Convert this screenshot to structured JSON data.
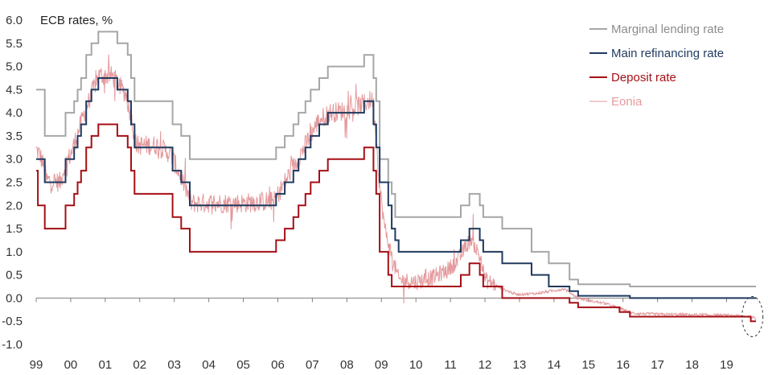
{
  "chart_data": {
    "type": "line",
    "ylabel": "ECB rates, %",
    "ylim": [
      -1.0,
      6.0
    ],
    "yticks": [
      "6.0",
      "5.5",
      "5.0",
      "4.5",
      "4.0",
      "3.5",
      "3.0",
      "2.5",
      "2.0",
      "1.5",
      "1.0",
      "0.5",
      "0.0",
      "-0.5",
      "-1.0"
    ],
    "xlim": [
      1999.0,
      2019.85
    ],
    "xticks": [
      {
        "label": "99",
        "x": 1999.0
      },
      {
        "label": "00",
        "x": 2000.0
      },
      {
        "label": "01",
        "x": 2001.0
      },
      {
        "label": "02",
        "x": 2002.0
      },
      {
        "label": "03",
        "x": 2003.0
      },
      {
        "label": "04",
        "x": 2004.0
      },
      {
        "label": "05",
        "x": 2005.0
      },
      {
        "label": "06",
        "x": 2006.0
      },
      {
        "label": "07",
        "x": 2007.0
      },
      {
        "label": "08",
        "x": 2008.0
      },
      {
        "label": "09",
        "x": 2009.0
      },
      {
        "label": "10",
        "x": 2010.0
      },
      {
        "label": "11",
        "x": 2011.0
      },
      {
        "label": "12",
        "x": 2012.0
      },
      {
        "label": "13",
        "x": 2013.0
      },
      {
        "label": "14",
        "x": 2014.0
      },
      {
        "label": "15",
        "x": 2015.0
      },
      {
        "label": "16",
        "x": 2016.0
      },
      {
        "label": "17",
        "x": 2017.0
      },
      {
        "label": "18",
        "x": 2018.0
      },
      {
        "label": "19",
        "x": 2019.0
      }
    ],
    "legend_position": "top-right",
    "series": [
      {
        "name": "Marginal lending rate",
        "color": "#a6a6a6",
        "step": true,
        "points": [
          [
            1999.0,
            4.5
          ],
          [
            1999.25,
            3.5
          ],
          [
            1999.85,
            4.0
          ],
          [
            2000.1,
            4.25
          ],
          [
            2000.2,
            4.5
          ],
          [
            2000.3,
            4.75
          ],
          [
            2000.45,
            5.25
          ],
          [
            2000.6,
            5.5
          ],
          [
            2000.8,
            5.75
          ],
          [
            2001.35,
            5.5
          ],
          [
            2001.65,
            5.25
          ],
          [
            2001.75,
            4.75
          ],
          [
            2001.85,
            4.25
          ],
          [
            2002.95,
            3.75
          ],
          [
            2003.2,
            3.5
          ],
          [
            2003.45,
            3.0
          ],
          [
            2005.95,
            3.25
          ],
          [
            2006.2,
            3.5
          ],
          [
            2006.45,
            3.75
          ],
          [
            2006.6,
            4.0
          ],
          [
            2006.8,
            4.25
          ],
          [
            2006.95,
            4.5
          ],
          [
            2007.2,
            4.75
          ],
          [
            2007.45,
            5.0
          ],
          [
            2008.5,
            5.25
          ],
          [
            2008.77,
            4.75
          ],
          [
            2008.85,
            4.25
          ],
          [
            2008.95,
            3.0
          ],
          [
            2009.05,
            3.0
          ],
          [
            2009.2,
            2.5
          ],
          [
            2009.3,
            2.25
          ],
          [
            2009.4,
            1.75
          ],
          [
            2011.3,
            2.0
          ],
          [
            2011.55,
            2.25
          ],
          [
            2011.85,
            2.0
          ],
          [
            2011.95,
            1.75
          ],
          [
            2012.5,
            1.5
          ],
          [
            2013.35,
            1.0
          ],
          [
            2013.85,
            0.75
          ],
          [
            2014.45,
            0.4
          ],
          [
            2014.7,
            0.3
          ],
          [
            2016.2,
            0.25
          ],
          [
            2019.85,
            0.25
          ]
        ]
      },
      {
        "name": "Main refinancing rate",
        "color": "#1f3a5f",
        "step": true,
        "points": [
          [
            1999.0,
            3.0
          ],
          [
            1999.25,
            2.5
          ],
          [
            1999.85,
            3.0
          ],
          [
            2000.1,
            3.25
          ],
          [
            2000.2,
            3.5
          ],
          [
            2000.3,
            3.75
          ],
          [
            2000.45,
            4.25
          ],
          [
            2000.6,
            4.5
          ],
          [
            2000.8,
            4.75
          ],
          [
            2001.35,
            4.5
          ],
          [
            2001.65,
            4.25
          ],
          [
            2001.75,
            3.75
          ],
          [
            2001.85,
            3.25
          ],
          [
            2002.95,
            2.75
          ],
          [
            2003.2,
            2.5
          ],
          [
            2003.45,
            2.0
          ],
          [
            2005.95,
            2.25
          ],
          [
            2006.2,
            2.5
          ],
          [
            2006.45,
            2.75
          ],
          [
            2006.6,
            3.0
          ],
          [
            2006.8,
            3.25
          ],
          [
            2006.95,
            3.5
          ],
          [
            2007.2,
            3.75
          ],
          [
            2007.45,
            4.0
          ],
          [
            2008.5,
            4.25
          ],
          [
            2008.77,
            3.75
          ],
          [
            2008.85,
            3.25
          ],
          [
            2008.95,
            2.5
          ],
          [
            2009.05,
            2.5
          ],
          [
            2009.2,
            2.0
          ],
          [
            2009.3,
            1.5
          ],
          [
            2009.4,
            1.25
          ],
          [
            2009.5,
            1.0
          ],
          [
            2011.3,
            1.25
          ],
          [
            2011.55,
            1.5
          ],
          [
            2011.85,
            1.25
          ],
          [
            2011.95,
            1.0
          ],
          [
            2012.5,
            0.75
          ],
          [
            2013.35,
            0.5
          ],
          [
            2013.85,
            0.25
          ],
          [
            2014.45,
            0.15
          ],
          [
            2014.7,
            0.05
          ],
          [
            2016.2,
            0.0
          ],
          [
            2019.85,
            0.0
          ]
        ]
      },
      {
        "name": "Deposit rate",
        "color": "#a50f15",
        "step": true,
        "points": [
          [
            1999.0,
            2.75
          ],
          [
            1999.05,
            2.0
          ],
          [
            1999.25,
            1.5
          ],
          [
            1999.85,
            2.0
          ],
          [
            2000.1,
            2.25
          ],
          [
            2000.2,
            2.5
          ],
          [
            2000.3,
            2.75
          ],
          [
            2000.45,
            3.25
          ],
          [
            2000.6,
            3.5
          ],
          [
            2000.8,
            3.75
          ],
          [
            2001.35,
            3.5
          ],
          [
            2001.65,
            3.25
          ],
          [
            2001.75,
            2.75
          ],
          [
            2001.85,
            2.25
          ],
          [
            2002.95,
            1.75
          ],
          [
            2003.2,
            1.5
          ],
          [
            2003.45,
            1.0
          ],
          [
            2005.95,
            1.25
          ],
          [
            2006.2,
            1.5
          ],
          [
            2006.45,
            1.75
          ],
          [
            2006.6,
            2.0
          ],
          [
            2006.8,
            2.25
          ],
          [
            2006.95,
            2.5
          ],
          [
            2007.2,
            2.75
          ],
          [
            2007.45,
            3.0
          ],
          [
            2008.5,
            3.25
          ],
          [
            2008.77,
            2.75
          ],
          [
            2008.85,
            2.25
          ],
          [
            2008.95,
            1.0
          ],
          [
            2009.05,
            1.0
          ],
          [
            2009.2,
            0.5
          ],
          [
            2009.3,
            0.25
          ],
          [
            2011.3,
            0.5
          ],
          [
            2011.55,
            0.75
          ],
          [
            2011.85,
            0.5
          ],
          [
            2011.95,
            0.25
          ],
          [
            2012.5,
            0.0
          ],
          [
            2014.45,
            -0.1
          ],
          [
            2014.7,
            -0.2
          ],
          [
            2015.9,
            -0.3
          ],
          [
            2016.2,
            -0.4
          ],
          [
            2019.7,
            -0.5
          ],
          [
            2019.85,
            -0.5
          ]
        ]
      },
      {
        "name": "Eonia",
        "color": "#e3999c",
        "step": false,
        "noisy": true,
        "points": [
          [
            1999.0,
            3.2
          ],
          [
            1999.1,
            3.1
          ],
          [
            1999.2,
            2.9
          ],
          [
            1999.3,
            2.55
          ],
          [
            1999.7,
            2.5
          ],
          [
            1999.85,
            2.9
          ],
          [
            2000.0,
            3.1
          ],
          [
            2000.2,
            3.55
          ],
          [
            2000.4,
            4.0
          ],
          [
            2000.6,
            4.4
          ],
          [
            2000.8,
            4.8
          ],
          [
            2001.0,
            4.8
          ],
          [
            2001.2,
            4.8
          ],
          [
            2001.4,
            4.6
          ],
          [
            2001.6,
            4.4
          ],
          [
            2001.75,
            3.9
          ],
          [
            2001.9,
            3.3
          ],
          [
            2002.5,
            3.3
          ],
          [
            2002.9,
            3.1
          ],
          [
            2003.2,
            2.6
          ],
          [
            2003.5,
            2.05
          ],
          [
            2004.0,
            2.05
          ],
          [
            2005.0,
            2.05
          ],
          [
            2005.9,
            2.1
          ],
          [
            2006.2,
            2.5
          ],
          [
            2006.5,
            2.9
          ],
          [
            2006.8,
            3.3
          ],
          [
            2007.0,
            3.6
          ],
          [
            2007.2,
            3.85
          ],
          [
            2007.5,
            4.0
          ],
          [
            2008.0,
            4.05
          ],
          [
            2008.5,
            4.2
          ],
          [
            2008.75,
            4.3
          ],
          [
            2008.85,
            3.5
          ],
          [
            2008.95,
            2.4
          ],
          [
            2009.1,
            1.5
          ],
          [
            2009.3,
            0.9
          ],
          [
            2009.5,
            0.4
          ],
          [
            2010.0,
            0.35
          ],
          [
            2010.5,
            0.45
          ],
          [
            2010.9,
            0.6
          ],
          [
            2011.2,
            0.8
          ],
          [
            2011.6,
            1.3
          ],
          [
            2011.9,
            0.8
          ],
          [
            2012.0,
            0.4
          ],
          [
            2012.5,
            0.2
          ],
          [
            2012.9,
            0.08
          ],
          [
            2013.5,
            0.1
          ],
          [
            2013.9,
            0.15
          ],
          [
            2014.3,
            0.2
          ],
          [
            2014.7,
            0.0
          ],
          [
            2015.0,
            -0.05
          ],
          [
            2015.5,
            -0.12
          ],
          [
            2016.0,
            -0.25
          ],
          [
            2016.3,
            -0.33
          ],
          [
            2017.0,
            -0.35
          ],
          [
            2018.0,
            -0.36
          ],
          [
            2019.0,
            -0.37
          ],
          [
            2019.7,
            -0.4
          ],
          [
            2019.85,
            -0.45
          ]
        ]
      }
    ],
    "annotation": {
      "type": "dashed-ellipse",
      "x": 2019.75,
      "y": -0.4
    }
  }
}
